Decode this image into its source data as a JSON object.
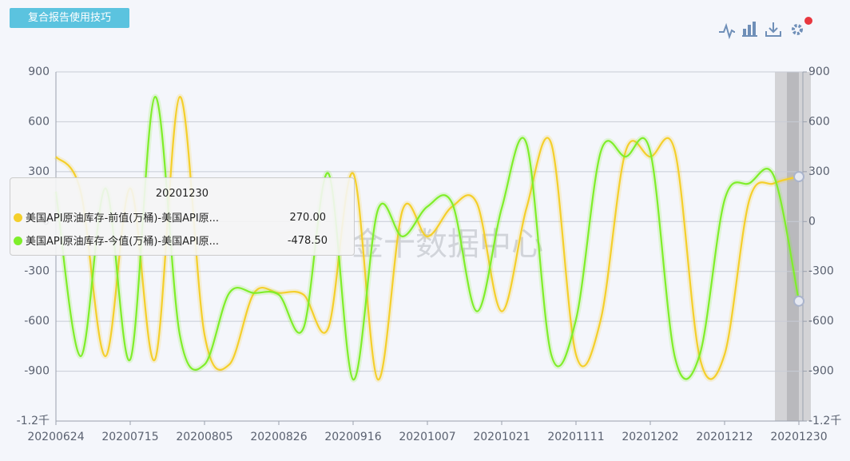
{
  "header": {
    "button": "复合报告使用技巧"
  },
  "watermark": "金十数据中心",
  "chart_data": {
    "type": "line",
    "categories": [
      "20200624",
      null,
      null,
      "20200715",
      null,
      null,
      "20200805",
      null,
      null,
      "20200826",
      null,
      null,
      "20200916",
      null,
      null,
      "20201007",
      null,
      null,
      "20201021",
      null,
      null,
      "20201111",
      null,
      null,
      "20201202",
      null,
      null,
      "20201212",
      null,
      null,
      "20201230"
    ],
    "series": [
      {
        "name": "美国API原油库存-前值(万桶)-美国API原...",
        "color": "#f4cf2b",
        "values": [
          390,
          180,
          -810,
          200,
          -830,
          750,
          -680,
          -860,
          -430,
          -430,
          -440,
          -640,
          290,
          -950,
          70,
          -90,
          90,
          110,
          -540,
          80,
          470,
          -800,
          -590,
          420,
          390,
          420,
          -820,
          -800,
          130,
          230,
          270
        ]
      },
      {
        "name": "美国API原油库存-今值(万桶)-美国API原...",
        "color": "#7fee2a",
        "values": [
          180,
          -810,
          200,
          -830,
          750,
          -680,
          -860,
          -430,
          -430,
          -440,
          -640,
          290,
          -950,
          70,
          -90,
          90,
          110,
          -540,
          80,
          470,
          -800,
          -590,
          420,
          390,
          420,
          -820,
          -800,
          130,
          230,
          270,
          -478.5
        ]
      }
    ],
    "tooltip": {
      "values": [
        270,
        -478.5
      ],
      "value_labels": [
        "270.00",
        "-478.50"
      ]
    },
    "ylim": [
      -1200,
      900
    ],
    "yticks": [
      {
        "value": -1200,
        "label": "-1.2千"
      },
      -900,
      -600,
      -300,
      0,
      300,
      600,
      900
    ],
    "y2lim": [
      -1200,
      900
    ],
    "y2ticks": [
      {
        "value": -1200,
        "label": "-1.2千"
      },
      -900,
      -600,
      -300,
      0,
      300,
      600,
      900
    ],
    "grid": true
  }
}
